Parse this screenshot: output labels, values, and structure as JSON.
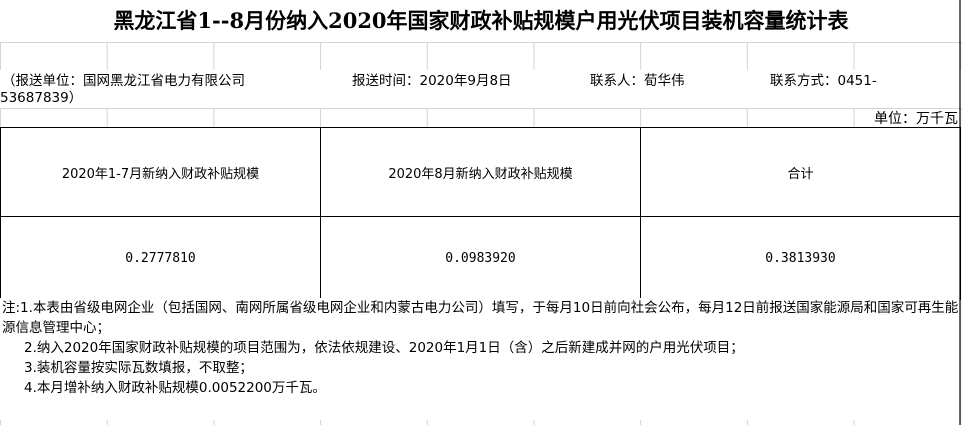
{
  "title": "黑龙江省1--8月份纳入2020年国家财政补贴规模户用光伏项目装机容量统计表",
  "info": {
    "unit_org": "（报送单位：国网黑龙江省电力有限公司",
    "report_time": "报送时间：2020年9月8日",
    "contact": "联系人：荀华伟",
    "phone_label": "联系方式：0451-",
    "phone_rest": "53687839）"
  },
  "unit": "单位：万千瓦",
  "table": {
    "headers": [
      "2020年1-7月新纳入财政补贴规模",
      "2020年8月新纳入财政补贴规模",
      "合计"
    ],
    "values": [
      "0.2777810",
      "0.0983920",
      "0.3813930"
    ]
  },
  "notes": [
    "注:1.本表由省级电网企业（包括国网、南网所属省级电网企业和内蒙古电力公司）填写，于每月10日前向社会公布，每月12日前报送国家能源局和国家可再生能源信息管理中心；",
    "2.纳入2020年国家财政补贴规模的项目范围为，依法依规建设、2020年1月1日（含）之后新建成并网的户用光伏项目；",
    "3.装机容量按实际瓦数填报，不取整；",
    "4.本月增补纳入财政补贴规模0.0052200万千瓦。"
  ]
}
